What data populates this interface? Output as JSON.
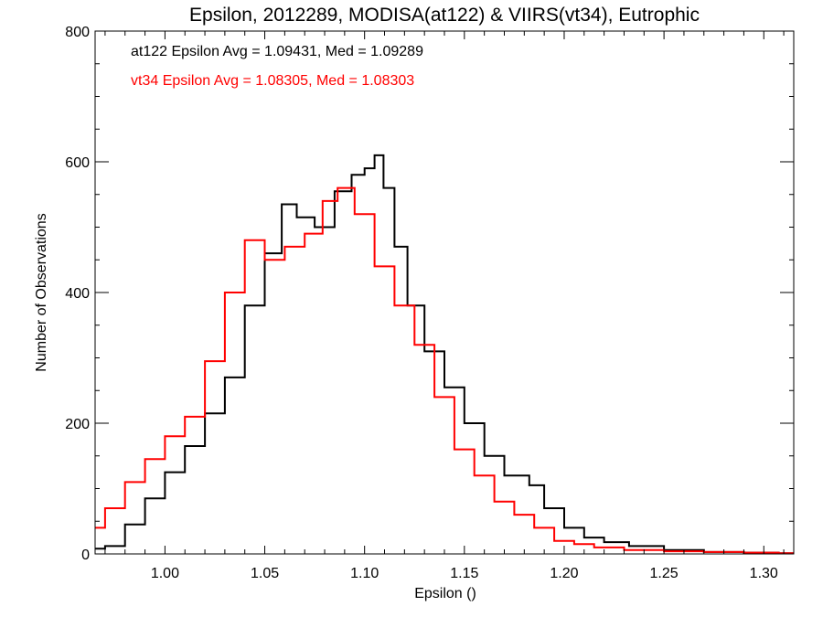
{
  "chart_data": {
    "type": "line",
    "title": "Epsilon, 2012289, MODISA(at122) & VIIRS(vt34), Eutrophic",
    "xlabel": "Epsilon ()",
    "ylabel": "Number of Observations",
    "xlim": [
      0.965,
      1.315
    ],
    "ylim": [
      0,
      800
    ],
    "x_ticks": [
      "1.00",
      "1.05",
      "1.10",
      "1.15",
      "1.20",
      "1.25",
      "1.30"
    ],
    "y_ticks": [
      "0",
      "200",
      "400",
      "600",
      "800"
    ],
    "grid": false,
    "style": "step",
    "annotations": [
      {
        "text": "at122 Epsilon Avg = 1.09431, Med = 1.09289",
        "color": "#000000"
      },
      {
        "text": "vt34 Epsilon Avg = 1.08305, Med = 1.08303",
        "color": "#ff0000"
      }
    ],
    "series": [
      {
        "color": "#000000",
        "x": [
          0.965,
          0.975,
          0.985,
          0.995,
          1.005,
          1.015,
          1.025,
          1.035,
          1.045,
          1.055,
          1.062,
          1.07,
          1.08,
          1.09,
          1.097,
          1.103,
          1.107,
          1.112,
          1.118,
          1.125,
          1.135,
          1.145,
          1.155,
          1.165,
          1.175,
          1.18,
          1.185,
          1.195,
          1.205,
          1.215,
          1.225,
          1.24,
          1.26,
          1.28,
          1.3,
          1.315
        ],
        "y": [
          8,
          12,
          45,
          85,
          125,
          165,
          215,
          270,
          380,
          460,
          535,
          515,
          500,
          555,
          580,
          590,
          610,
          560,
          470,
          380,
          310,
          255,
          200,
          150,
          120,
          120,
          105,
          70,
          40,
          25,
          18,
          12,
          6,
          3,
          2,
          1
        ]
      },
      {
        "color": "#ff0000",
        "x": [
          0.965,
          0.975,
          0.985,
          0.995,
          1.005,
          1.015,
          1.025,
          1.035,
          1.045,
          1.055,
          1.065,
          1.075,
          1.083,
          1.09,
          1.1,
          1.11,
          1.12,
          1.13,
          1.14,
          1.15,
          1.16,
          1.17,
          1.18,
          1.19,
          1.2,
          1.21,
          1.22,
          1.24,
          1.26,
          1.28,
          1.3,
          1.315
        ],
        "y": [
          40,
          70,
          110,
          145,
          180,
          210,
          295,
          400,
          480,
          450,
          470,
          490,
          540,
          560,
          520,
          440,
          380,
          320,
          240,
          160,
          120,
          80,
          60,
          40,
          20,
          15,
          10,
          6,
          4,
          3,
          2,
          1
        ]
      }
    ]
  }
}
